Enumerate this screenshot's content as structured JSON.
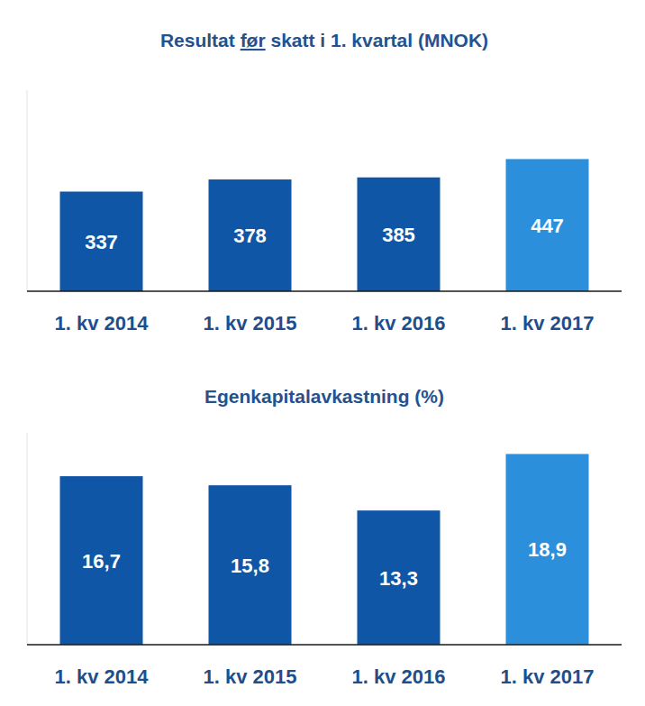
{
  "chart_data": [
    {
      "type": "bar",
      "title": "Resultat før skatt i 1. kvartal (MNOK)",
      "categories": [
        "1. kv 2014",
        "1. kv 2015",
        "1. kv 2016",
        "1. kv 2017"
      ],
      "values": [
        337,
        378,
        385,
        447
      ],
      "colors": [
        "#0f57a6",
        "#0f57a6",
        "#0f57a6",
        "#2b8fdc"
      ],
      "ylim": [
        0,
        680
      ],
      "data_labels": true,
      "grid": false,
      "tick_labels": "x"
    },
    {
      "type": "bar",
      "title": "Egenkapitalavkastning (%)",
      "categories": [
        "1. kv 2014",
        "1. kv 2015",
        "1. kv 2016",
        "1. kv 2017"
      ],
      "values": [
        16.7,
        15.8,
        13.3,
        18.9
      ],
      "value_labels": [
        "16,7",
        "15,8",
        "13,3",
        "18,9"
      ],
      "colors": [
        "#0f57a6",
        "#0f57a6",
        "#0f57a6",
        "#2b8fdc"
      ],
      "ylim": [
        0,
        21
      ],
      "data_labels": true,
      "grid": false,
      "tick_labels": "x"
    }
  ]
}
